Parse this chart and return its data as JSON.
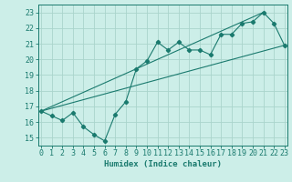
{
  "title": "",
  "xlabel": "Humidex (Indice chaleur)",
  "bg_color": "#cceee8",
  "grid_color": "#aad4cc",
  "line_color": "#1a7a6e",
  "x_data": [
    0,
    1,
    2,
    3,
    4,
    5,
    6,
    7,
    8,
    9,
    10,
    11,
    12,
    13,
    14,
    15,
    16,
    17,
    18,
    19,
    20,
    21,
    22,
    23
  ],
  "y_main": [
    16.7,
    16.4,
    16.1,
    16.6,
    15.7,
    15.2,
    14.8,
    16.5,
    17.3,
    19.4,
    19.9,
    21.1,
    20.6,
    21.1,
    20.6,
    20.6,
    20.3,
    21.6,
    21.6,
    22.3,
    22.4,
    23.0,
    22.3,
    20.9
  ],
  "line1_x": [
    0,
    23
  ],
  "line1_y": [
    16.7,
    20.9
  ],
  "line2_x": [
    0,
    21
  ],
  "line2_y": [
    16.7,
    23.0
  ],
  "xlim": [
    -0.3,
    23.3
  ],
  "ylim": [
    14.5,
    23.5
  ],
  "xticks": [
    0,
    1,
    2,
    3,
    4,
    5,
    6,
    7,
    8,
    9,
    10,
    11,
    12,
    13,
    14,
    15,
    16,
    17,
    18,
    19,
    20,
    21,
    22,
    23
  ],
  "yticks": [
    15,
    16,
    17,
    18,
    19,
    20,
    21,
    22,
    23
  ],
  "xlabel_fontsize": 6.5,
  "tick_fontsize": 6
}
